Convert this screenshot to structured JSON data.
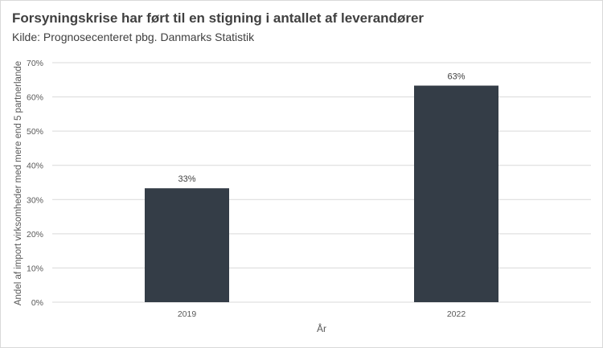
{
  "chart_data": {
    "type": "bar",
    "title": "Forsyningskrise har ført til en stigning i antallet af leverandører",
    "subtitle": "Kilde: Prognosecenteret pbg. Danmarks Statistik",
    "xlabel": "År",
    "ylabel": "Andel af import virksomheder med mere end 5 partnerlande",
    "categories": [
      "2019",
      "2022"
    ],
    "values": [
      33.3,
      63.3
    ],
    "data_labels": [
      "33%",
      "63%"
    ],
    "ylim": [
      0,
      70
    ],
    "yticks": [
      0,
      10,
      20,
      30,
      40,
      50,
      60,
      70
    ],
    "ytick_labels": [
      "0%",
      "10%",
      "20%",
      "30%",
      "40%",
      "50%",
      "60%",
      "70%"
    ],
    "grid": true,
    "legend": "none",
    "bar_color": "#343d47",
    "grid_color": "#d9d9d9"
  }
}
